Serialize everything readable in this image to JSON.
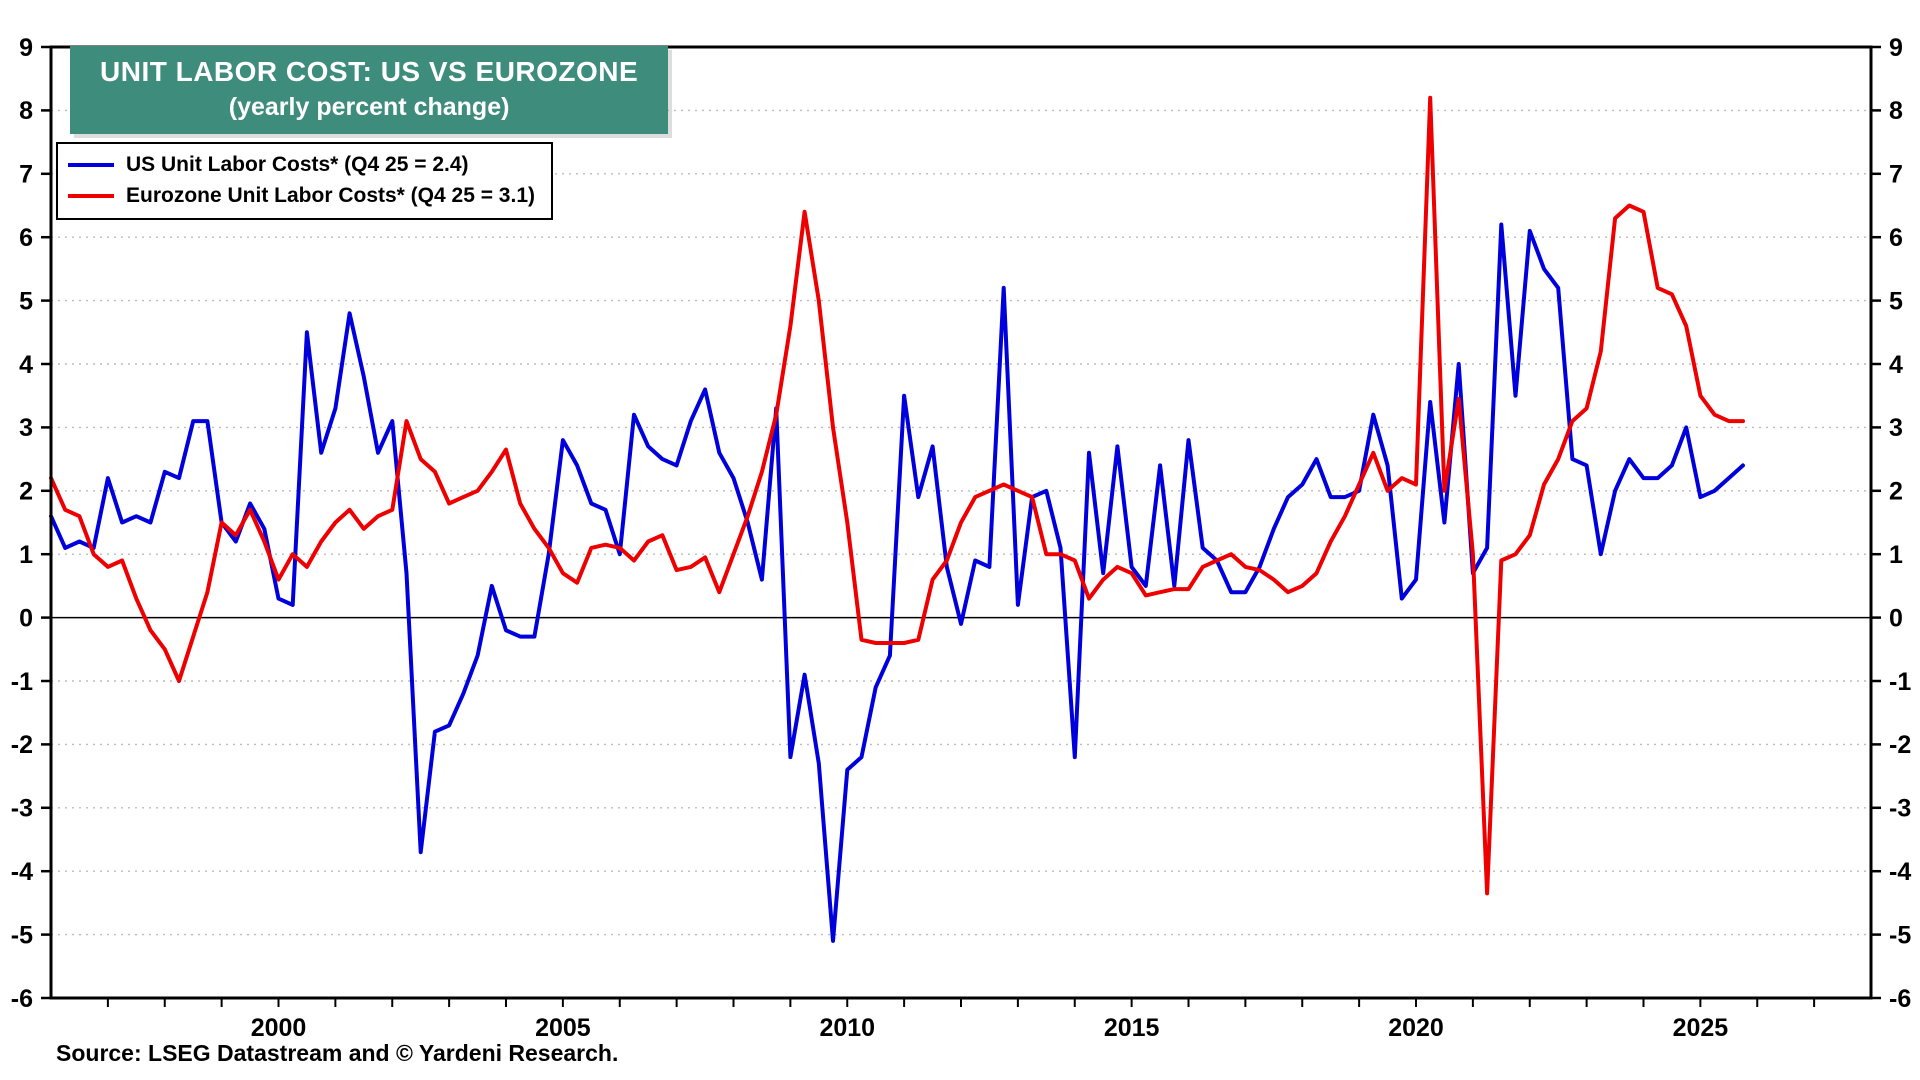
{
  "chart_data": {
    "type": "line",
    "title": "UNIT LABOR COST: US VS EUROZONE",
    "subtitle": "(yearly percent change)",
    "title_bg_color": "#3E8C7C",
    "source": "Source: LSEG Datastream and © Yardeni Research.",
    "xlim": [
      1996,
      2028
    ],
    "ylim": [
      -6,
      9
    ],
    "grid": "dotted-horizontal",
    "legend_position": "top-left",
    "x_start": 1996,
    "x_step": 0.25,
    "frequency": "quarterly",
    "y_ticks": [
      -6,
      -5,
      -4,
      -3,
      -2,
      -1,
      0,
      1,
      2,
      3,
      4,
      5,
      6,
      7,
      8,
      9
    ],
    "x_tick_labels": [
      "2000",
      "2005",
      "2010",
      "2015",
      "2020",
      "2025"
    ],
    "series": [
      {
        "name": "US Unit Labor Costs* (Q4 25 = 2.4)",
        "color": "#0000DD",
        "last_value": 2.4,
        "values": [
          1.6,
          1.1,
          1.2,
          1.1,
          2.2,
          1.5,
          1.6,
          1.5,
          2.3,
          2.2,
          3.1,
          3.1,
          1.5,
          1.2,
          1.8,
          1.4,
          0.3,
          0.2,
          4.5,
          2.6,
          3.3,
          4.8,
          3.8,
          2.6,
          3.1,
          0.7,
          -3.7,
          -1.8,
          -1.7,
          -1.2,
          -0.6,
          0.5,
          -0.2,
          -0.3,
          -0.3,
          1.0,
          2.8,
          2.4,
          1.8,
          1.7,
          1.0,
          3.2,
          2.7,
          2.5,
          2.4,
          3.1,
          3.6,
          2.6,
          2.2,
          1.5,
          0.6,
          3.3,
          -2.2,
          -0.9,
          -2.3,
          -5.1,
          -2.4,
          -2.2,
          -1.1,
          -0.6,
          3.5,
          1.9,
          2.7,
          0.8,
          -0.1,
          0.9,
          0.8,
          5.2,
          0.2,
          1.9,
          2.0,
          1.1,
          -2.2,
          2.6,
          0.7,
          2.7,
          0.8,
          0.5,
          2.4,
          0.5,
          2.8,
          1.1,
          0.9,
          0.4,
          0.4,
          0.8,
          1.4,
          1.9,
          2.1,
          2.5,
          1.9,
          1.9,
          2.0,
          3.2,
          2.4,
          0.3,
          0.6,
          3.4,
          1.5,
          4.0,
          0.7,
          1.1,
          6.2,
          3.5,
          6.1,
          5.5,
          5.2,
          2.5,
          2.4,
          1.0,
          2.0,
          2.5,
          2.2,
          2.2,
          2.4,
          3.0,
          1.9,
          2.0,
          2.2,
          2.4
        ]
      },
      {
        "name": "Eurozone Unit Labor Costs* (Q4 25 = 3.1)",
        "color": "#EE0000",
        "last_value": 3.1,
        "values": [
          2.2,
          1.7,
          1.6,
          1.0,
          0.8,
          0.9,
          0.3,
          -0.2,
          -0.5,
          -1.0,
          -0.3,
          0.4,
          1.5,
          1.3,
          1.7,
          1.2,
          0.6,
          1.0,
          0.8,
          1.2,
          1.5,
          1.7,
          1.4,
          1.6,
          1.7,
          3.1,
          2.5,
          2.3,
          1.8,
          1.9,
          2.0,
          2.3,
          2.65,
          1.8,
          1.4,
          1.1,
          0.7,
          0.55,
          1.1,
          1.15,
          1.1,
          0.9,
          1.2,
          1.3,
          0.75,
          0.8,
          0.95,
          0.4,
          1.0,
          1.6,
          2.3,
          3.2,
          4.6,
          6.4,
          5.0,
          3.0,
          1.5,
          -0.35,
          -0.4,
          -0.4,
          -0.4,
          -0.35,
          0.6,
          0.9,
          1.5,
          1.9,
          2.0,
          2.1,
          2.0,
          1.9,
          1.0,
          1.0,
          0.9,
          0.3,
          0.6,
          0.8,
          0.7,
          0.35,
          0.4,
          0.45,
          0.45,
          0.8,
          0.9,
          1.0,
          0.8,
          0.75,
          0.6,
          0.4,
          0.5,
          0.7,
          1.2,
          1.6,
          2.1,
          2.6,
          2.0,
          2.2,
          2.1,
          8.2,
          2.0,
          3.45,
          1.0,
          -4.35,
          0.9,
          1.0,
          1.3,
          2.1,
          2.5,
          3.1,
          3.3,
          4.2,
          6.3,
          6.5,
          6.4,
          5.2,
          5.1,
          4.6,
          3.5,
          3.2,
          3.1,
          3.1
        ]
      }
    ]
  }
}
